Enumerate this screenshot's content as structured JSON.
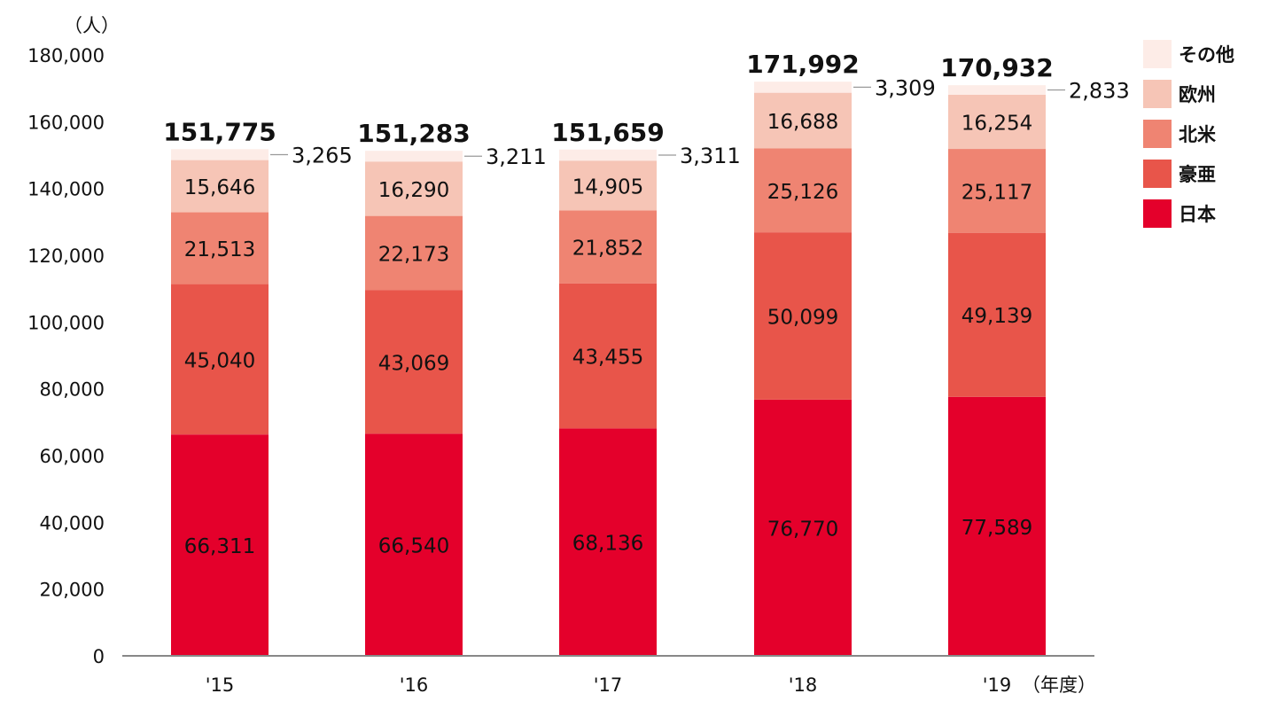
{
  "chart_data": {
    "type": "bar",
    "stacked": true,
    "unit_label": "（人）",
    "x_unit_label": "（年度）",
    "categories": [
      "'15",
      "'16",
      "'17",
      "'18",
      "'19"
    ],
    "ylim": [
      0,
      180000
    ],
    "yticks": [
      0,
      20000,
      40000,
      60000,
      80000,
      100000,
      120000,
      140000,
      160000,
      180000
    ],
    "ytick_labels": [
      "0",
      "20,000",
      "40,000",
      "60,000",
      "80,000",
      "100,000",
      "120,000",
      "140,000",
      "160,000",
      "180,000"
    ],
    "grid": false,
    "legend_position": "right",
    "series": [
      {
        "name": "日本",
        "color": "#e4002b",
        "values": [
          66311,
          66540,
          68136,
          76770,
          77589
        ],
        "labels": [
          "66,311",
          "66,540",
          "68,136",
          "76,770",
          "77,589"
        ]
      },
      {
        "name": "豪亜",
        "color": "#e8554a",
        "values": [
          45040,
          43069,
          43455,
          50099,
          49139
        ],
        "labels": [
          "45,040",
          "43,069",
          "43,455",
          "50,099",
          "49,139"
        ]
      },
      {
        "name": "北米",
        "color": "#ef8472",
        "values": [
          21513,
          22173,
          21852,
          25126,
          25117
        ],
        "labels": [
          "21,513",
          "22,173",
          "21,852",
          "25,126",
          "25,117"
        ]
      },
      {
        "name": "欧州",
        "color": "#f6c5b6",
        "values": [
          15646,
          16290,
          14905,
          16688,
          16254
        ],
        "labels": [
          "15,646",
          "16,290",
          "14,905",
          "16,688",
          "16,254"
        ]
      },
      {
        "name": "その他",
        "color": "#fdece7",
        "values": [
          3265,
          3211,
          3311,
          3309,
          2833
        ],
        "labels": [
          "3,265",
          "3,211",
          "3,311",
          "3,309",
          "2,833"
        ]
      }
    ],
    "totals": [
      151775,
      151283,
      151659,
      171992,
      170932
    ],
    "total_labels": [
      "151,775",
      "151,283",
      "151,659",
      "171,992",
      "170,932"
    ]
  }
}
